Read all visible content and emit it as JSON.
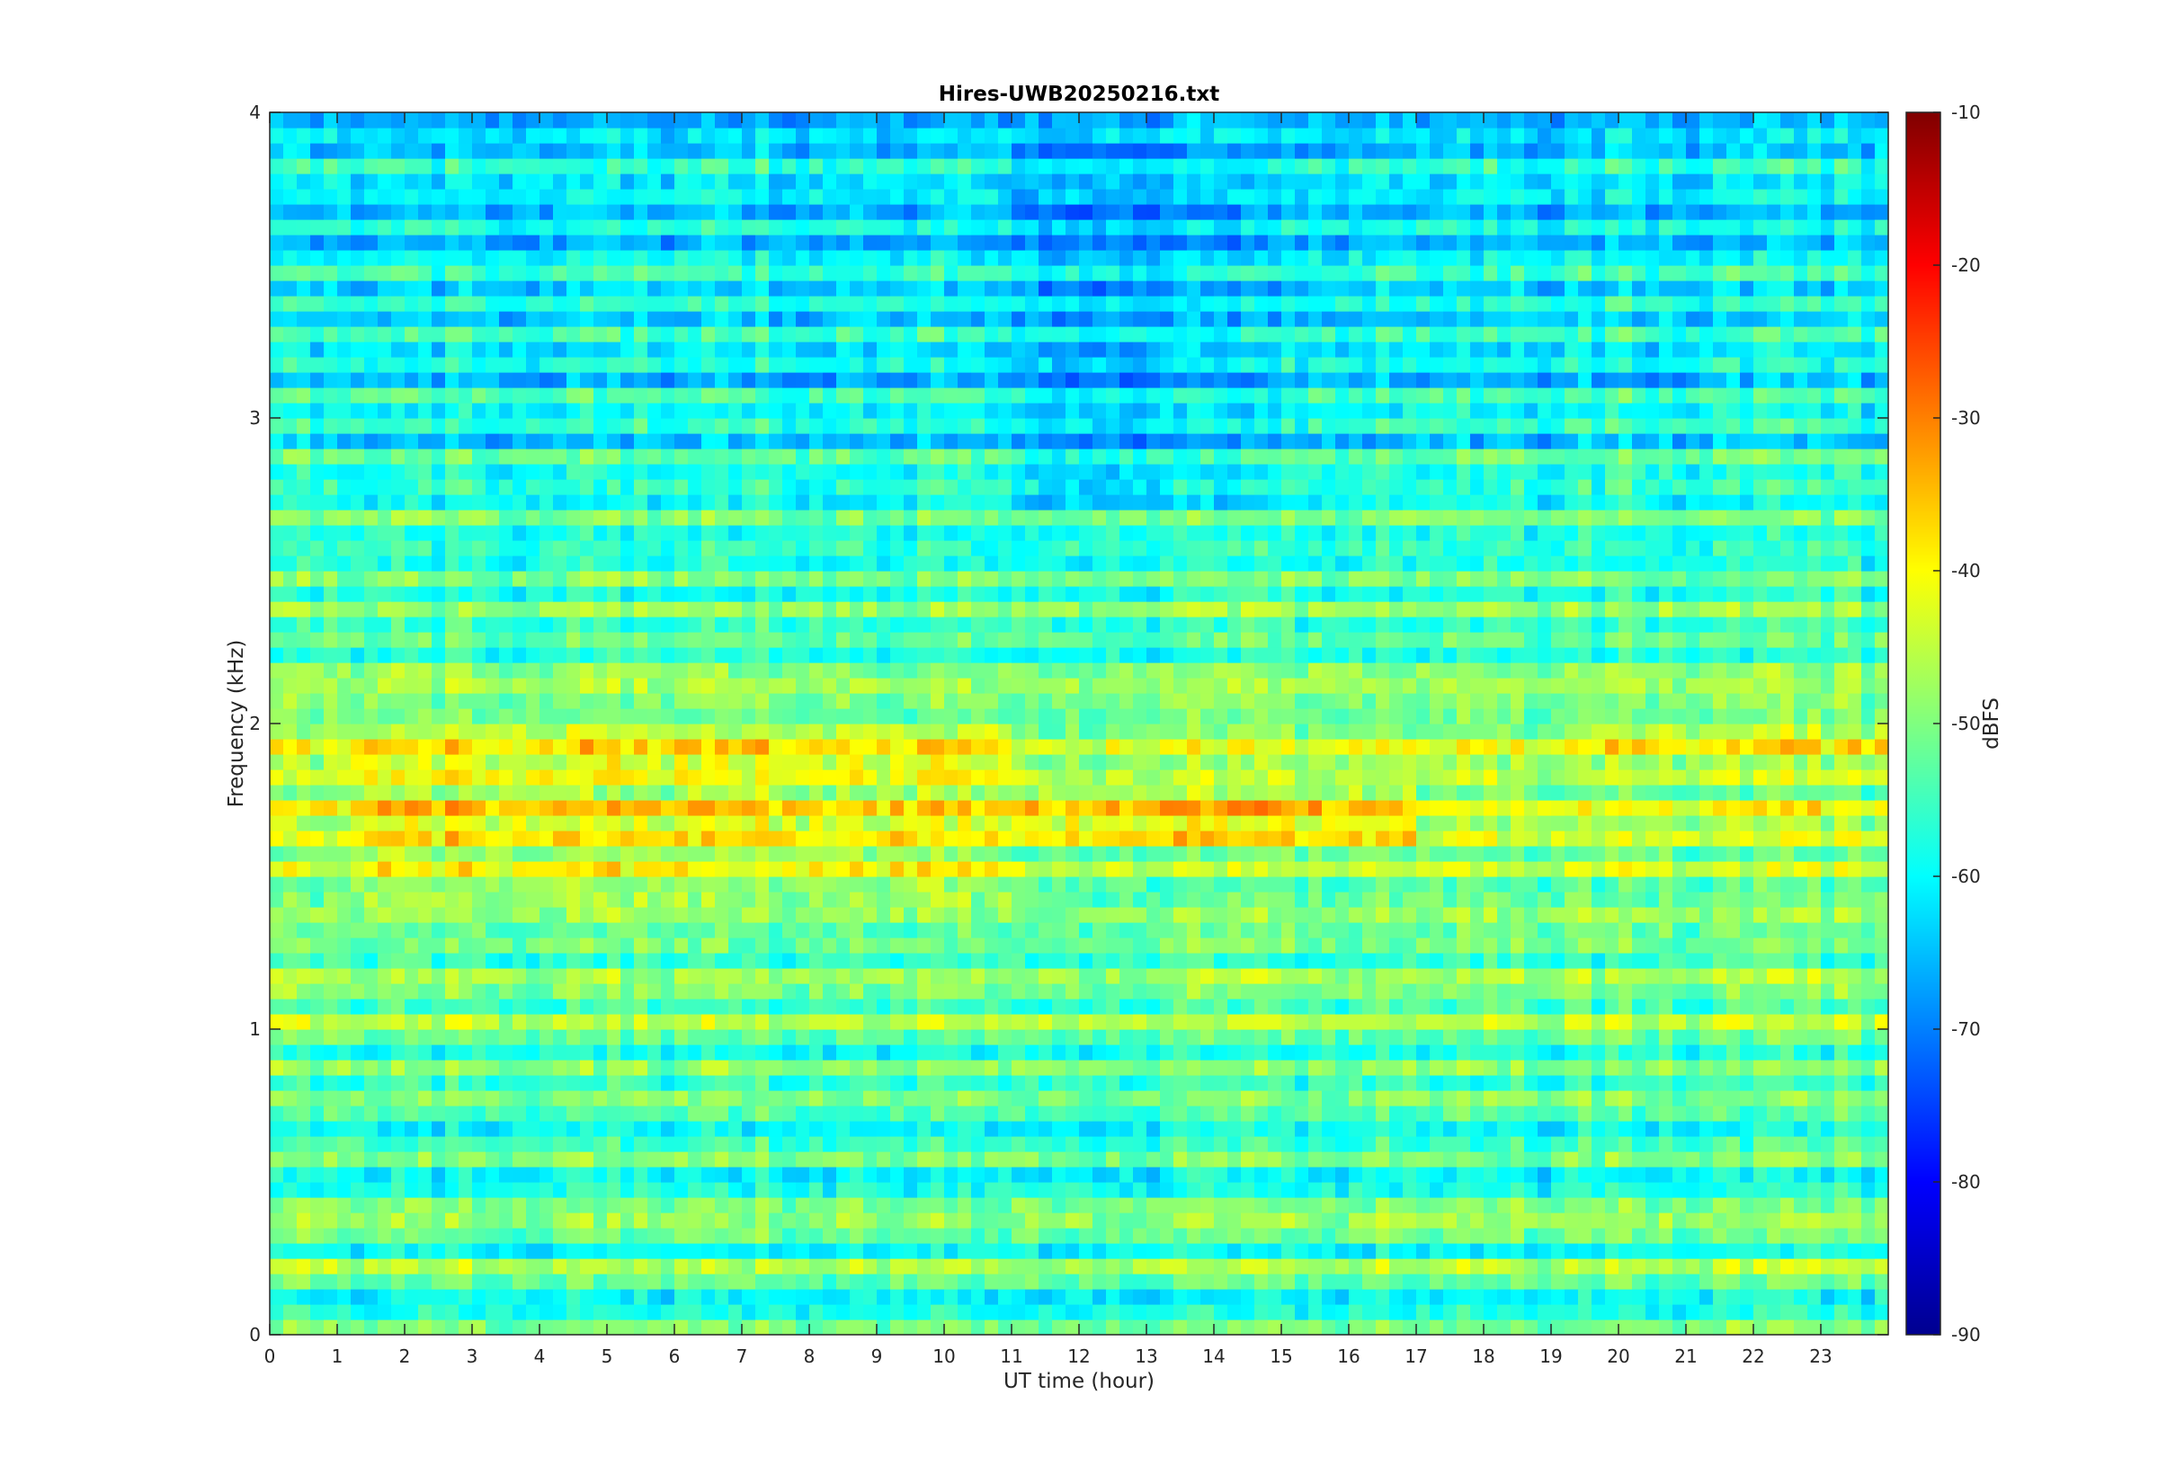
{
  "chart_data": {
    "type": "heatmap",
    "title": "Hires-UWB20250216.txt",
    "xlabel": "UT time (hour)",
    "ylabel": "Frequency (kHz)",
    "colorbar_label": "dBFS",
    "xlim": [
      0,
      24
    ],
    "ylim": [
      0,
      4
    ],
    "clim": [
      -90,
      -10
    ],
    "colormap": "jet",
    "x_ticks": [
      "0",
      "1",
      "2",
      "3",
      "4",
      "5",
      "6",
      "7",
      "8",
      "9",
      "10",
      "11",
      "12",
      "13",
      "14",
      "15",
      "16",
      "17",
      "18",
      "19",
      "20",
      "21",
      "22",
      "23"
    ],
    "y_ticks": [
      "0",
      "1",
      "2",
      "3",
      "4"
    ],
    "colorbar_ticks": [
      "-90",
      "-80",
      "-70",
      "-60",
      "-50",
      "-40",
      "-30",
      "-20",
      "-10"
    ],
    "grid": false,
    "x_step_hours": 0.2,
    "y_step_khz": 0.05,
    "profile_db": [
      -50,
      -58,
      -60,
      -52,
      -46,
      -60,
      -52,
      -48,
      -50,
      -58,
      -60,
      -50,
      -55,
      -60,
      -54,
      -50,
      -56,
      -49,
      -58,
      -52,
      -45,
      -55,
      -50,
      -47,
      -56,
      -51,
      -52,
      -48,
      -52,
      -53,
      -44,
      -52,
      -43,
      -48,
      -40,
      -52,
      -45,
      -48,
      -42,
      -50,
      -51,
      -50,
      -47,
      -49,
      -58,
      -52,
      -56,
      -48,
      -58,
      -50,
      -58,
      -56,
      -58,
      -50,
      -60,
      -56,
      -58,
      -52,
      -65,
      -56,
      -60,
      -54,
      -66,
      -58,
      -62,
      -55,
      -64,
      -57,
      -64,
      -55,
      -60,
      -66,
      -58,
      -66,
      -60,
      -62,
      -56,
      -65,
      -62,
      -66
    ],
    "diurnal_features": [
      {
        "name": "bright banded activity 1.4–2.0 kHz",
        "t_start": 1.2,
        "t_end": 11,
        "boost_db": 6
      },
      {
        "name": "evening enhancement 1.6–1.8 kHz",
        "t_start": 11,
        "t_end": 17,
        "boost_db": 7
      },
      {
        "name": "late-day enhancement 1.9–2.0 kHz",
        "t_start": 19,
        "t_end": 24,
        "boost_db": 5
      },
      {
        "name": "high-band quiet interval 2.7–3.9 kHz",
        "t_start": 11,
        "t_end": 15,
        "boost_db": -5
      }
    ]
  }
}
